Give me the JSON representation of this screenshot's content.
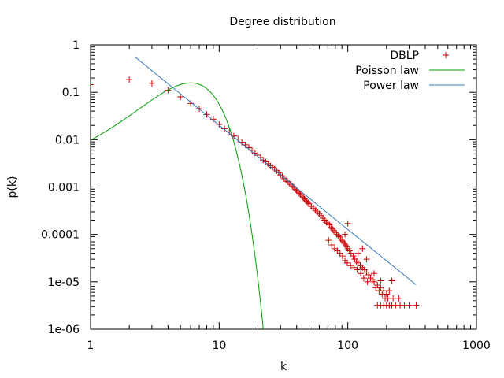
{
  "chart_data": {
    "type": "scatter",
    "title": "Degree distribution",
    "xlabel": "k",
    "ylabel": "p(k)",
    "xscale": "log",
    "yscale": "log",
    "xlim": [
      1,
      1000
    ],
    "ylim": [
      1e-06,
      1
    ],
    "grid": false,
    "legend_position": "top-right",
    "x_ticks": [
      {
        "value": 1,
        "label": "1"
      },
      {
        "value": 10,
        "label": "10"
      },
      {
        "value": 100,
        "label": "100"
      },
      {
        "value": 1000,
        "label": "1000"
      }
    ],
    "y_ticks": [
      {
        "value": 1,
        "label": "1"
      },
      {
        "value": 0.1,
        "label": "0.1"
      },
      {
        "value": 0.01,
        "label": "0.01"
      },
      {
        "value": 0.001,
        "label": "0.001"
      },
      {
        "value": 0.0001,
        "label": "0.0001"
      },
      {
        "value": 1e-05,
        "label": "1e-05"
      },
      {
        "value": 1e-06,
        "label": "1e-06"
      }
    ],
    "series": [
      {
        "name": "DBLP",
        "kind": "points",
        "marker": "+",
        "color": "#cc0000",
        "points": [
          [
            1,
            0.145
          ],
          [
            2,
            0.185
          ],
          [
            3,
            0.155
          ],
          [
            4,
            0.11
          ],
          [
            5,
            0.08
          ],
          [
            6,
            0.058
          ],
          [
            7,
            0.045
          ],
          [
            8,
            0.034
          ],
          [
            9,
            0.027
          ],
          [
            10,
            0.021
          ],
          [
            11,
            0.017
          ],
          [
            12,
            0.0145
          ],
          [
            13,
            0.012
          ],
          [
            14,
            0.0103
          ],
          [
            15,
            0.0088
          ],
          [
            16,
            0.0078
          ],
          [
            17,
            0.0068
          ],
          [
            18,
            0.006
          ],
          [
            19,
            0.0052
          ],
          [
            20,
            0.0047
          ],
          [
            21,
            0.0042
          ],
          [
            22,
            0.0037
          ],
          [
            23,
            0.0034
          ],
          [
            24,
            0.0031
          ],
          [
            25,
            0.0028
          ],
          [
            26,
            0.0026
          ],
          [
            27,
            0.0024
          ],
          [
            28,
            0.0022
          ],
          [
            29,
            0.002
          ],
          [
            30,
            0.0018
          ],
          [
            31,
            0.0017
          ],
          [
            32,
            0.0015
          ],
          [
            33,
            0.0014
          ],
          [
            34,
            0.0013
          ],
          [
            35,
            0.00122
          ],
          [
            36,
            0.00114
          ],
          [
            37,
            0.00105
          ],
          [
            38,
            0.00098
          ],
          [
            39,
            0.0009
          ],
          [
            40,
            0.00085
          ],
          [
            41,
            0.00078
          ],
          [
            42,
            0.00074
          ],
          [
            43,
            0.0007
          ],
          [
            44,
            0.00064
          ],
          [
            45,
            0.0006
          ],
          [
            46,
            0.00056
          ],
          [
            47,
            0.00053
          ],
          [
            48,
            0.0005
          ],
          [
            49,
            0.00046
          ],
          [
            50,
            0.00044
          ],
          [
            52,
            0.00039
          ],
          [
            54,
            0.00036
          ],
          [
            56,
            0.00032
          ],
          [
            58,
            0.0003
          ],
          [
            60,
            0.00027
          ],
          [
            62,
            0.00025
          ],
          [
            64,
            0.00022
          ],
          [
            66,
            0.0002
          ],
          [
            68,
            0.00018
          ],
          [
            70,
            0.00017
          ],
          [
            72,
            0.00016
          ],
          [
            74,
            0.00014
          ],
          [
            76,
            0.00013
          ],
          [
            78,
            0.00012
          ],
          [
            80,
            0.00011
          ],
          [
            82,
            0.0001
          ],
          [
            84,
            9.5e-05
          ],
          [
            86,
            9e-05
          ],
          [
            88,
            8e-05
          ],
          [
            90,
            7.5e-05
          ],
          [
            92,
            7e-05
          ],
          [
            94,
            6.5e-05
          ],
          [
            96,
            6e-05
          ],
          [
            98,
            5.5e-05
          ],
          [
            100,
            5e-05
          ],
          [
            103,
            4.5e-05
          ],
          [
            106,
            4e-05
          ],
          [
            110,
            3.5e-05
          ],
          [
            113,
            3e-05
          ],
          [
            117,
            2.7e-05
          ],
          [
            120,
            2.5e-05
          ],
          [
            125,
            2.2e-05
          ],
          [
            130,
            2e-05
          ],
          [
            135,
            1.8e-05
          ],
          [
            140,
            1.6e-05
          ],
          [
            145,
            1.4e-05
          ],
          [
            150,
            1.2e-05
          ],
          [
            155,
            1.1e-05
          ],
          [
            160,
            1e-05
          ],
          [
            170,
            8.5e-06
          ],
          [
            180,
            7.5e-06
          ],
          [
            190,
            6.5e-06
          ],
          [
            200,
            5.5e-06
          ],
          [
            210,
            6.5e-06
          ],
          [
            225,
            4.5e-06
          ],
          [
            250,
            4.5e-06
          ],
          [
            71,
            7.5e-05
          ],
          [
            75,
            6e-05
          ],
          [
            79,
            5e-05
          ],
          [
            83,
            4.5e-05
          ],
          [
            87,
            4e-05
          ],
          [
            91,
            3.5e-05
          ],
          [
            95,
            2.8e-05
          ],
          [
            99,
            2.5e-05
          ],
          [
            105,
            2.2e-05
          ],
          [
            112,
            2e-05
          ],
          [
            118,
            1.8e-05
          ],
          [
            126,
            1.5e-05
          ],
          [
            133,
            1.2e-05
          ],
          [
            142,
            1e-05
          ],
          [
            165,
            7.5e-06
          ],
          [
            175,
            6.5e-06
          ],
          [
            185,
            5.5e-06
          ],
          [
            195,
            4.5e-06
          ],
          [
            205,
            4.5e-06
          ],
          [
            95,
            0.0001
          ],
          [
            100,
            0.00017
          ],
          [
            140,
            3e-05
          ],
          [
            130,
            5e-05
          ],
          [
            120,
            4e-05
          ],
          [
            160,
            1.5e-05
          ],
          [
            180,
            1.05e-05
          ],
          [
            220,
            1.05e-05
          ],
          [
            170,
            3.2e-06
          ],
          [
            180,
            3.2e-06
          ],
          [
            190,
            3.2e-06
          ],
          [
            200,
            3.2e-06
          ],
          [
            210,
            3.2e-06
          ],
          [
            220,
            3.2e-06
          ],
          [
            235,
            3.2e-06
          ],
          [
            255,
            3.2e-06
          ],
          [
            275,
            3.2e-06
          ],
          [
            300,
            3.2e-06
          ],
          [
            340,
            3.2e-06
          ]
        ]
      },
      {
        "name": "Poisson law",
        "kind": "poisson",
        "color": "#00a000",
        "lambda": 6.5,
        "x_range": [
          1,
          23
        ]
      },
      {
        "name": "Power law",
        "kind": "power",
        "color": "#3a7abf",
        "coefficient": 3.2,
        "exponent": -2.2,
        "x_range": [
          2.2,
          340
        ]
      }
    ]
  }
}
